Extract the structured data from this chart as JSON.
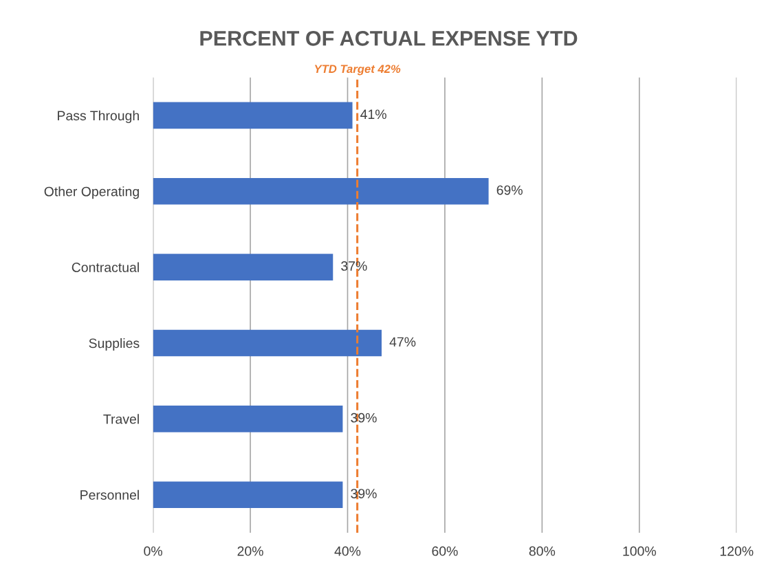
{
  "chart_data": {
    "type": "bar",
    "orientation": "horizontal",
    "title": "PERCENT OF ACTUAL EXPENSE YTD",
    "categories": [
      "Pass Through",
      "Other Operating",
      "Contractual",
      "Supplies",
      "Travel",
      "Personnel"
    ],
    "values": [
      41,
      69,
      37,
      47,
      39,
      39
    ],
    "value_labels": [
      "41%",
      "69%",
      "37%",
      "47%",
      "39%",
      "39%"
    ],
    "color": "#4472c4",
    "xlim": [
      0,
      120
    ],
    "xticks": [
      {
        "value": 0,
        "label": "0%"
      },
      {
        "value": 20,
        "label": "20%"
      },
      {
        "value": 40,
        "label": "40%"
      },
      {
        "value": 60,
        "label": "60%"
      },
      {
        "value": 80,
        "label": "80%"
      },
      {
        "value": 100,
        "label": "100%"
      },
      {
        "value": 120,
        "label": "120%"
      }
    ],
    "grid": "x",
    "ref_lines": [
      {
        "axis": "x",
        "value": 42,
        "label": "YTD Target 42%",
        "color": "#ed7d31",
        "line_style": "dashed"
      }
    ]
  }
}
